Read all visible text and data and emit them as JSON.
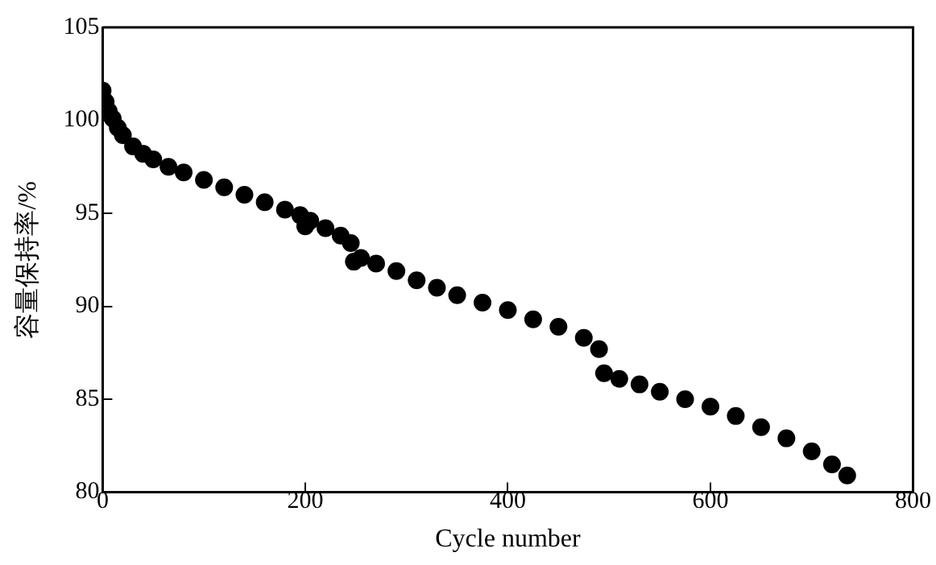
{
  "chart_data": {
    "type": "scatter",
    "xlabel": "Cycle number",
    "ylabel": "容量保持率/%",
    "xlim": [
      0,
      800
    ],
    "xticks": [
      0,
      200,
      400,
      600,
      800
    ],
    "ylim": [
      80,
      105
    ],
    "yticks": [
      80,
      85,
      90,
      95,
      100,
      105
    ],
    "grid": false,
    "legend": false,
    "marker": "circle",
    "series": [
      {
        "color": "#000000",
        "x": [
          0,
          3,
          6,
          10,
          15,
          20,
          30,
          40,
          50,
          65,
          80,
          100,
          120,
          140,
          160,
          180,
          195,
          200,
          205,
          220,
          235,
          245,
          248,
          255,
          270,
          290,
          310,
          330,
          350,
          375,
          400,
          425,
          450,
          475,
          490,
          495,
          510,
          530,
          550,
          575,
          600,
          625,
          650,
          675,
          700,
          720,
          735
        ],
        "values": [
          101.6,
          101.0,
          100.5,
          100.1,
          99.6,
          99.2,
          98.6,
          98.2,
          97.9,
          97.5,
          97.2,
          96.8,
          96.4,
          96.0,
          95.6,
          95.2,
          94.9,
          94.3,
          94.6,
          94.2,
          93.8,
          93.4,
          92.4,
          92.6,
          92.3,
          91.9,
          91.4,
          91.0,
          90.6,
          90.2,
          89.8,
          89.3,
          88.9,
          88.3,
          87.7,
          86.4,
          86.1,
          85.8,
          85.4,
          85.0,
          84.6,
          84.1,
          83.5,
          82.9,
          82.2,
          81.5,
          80.9
        ]
      }
    ]
  }
}
